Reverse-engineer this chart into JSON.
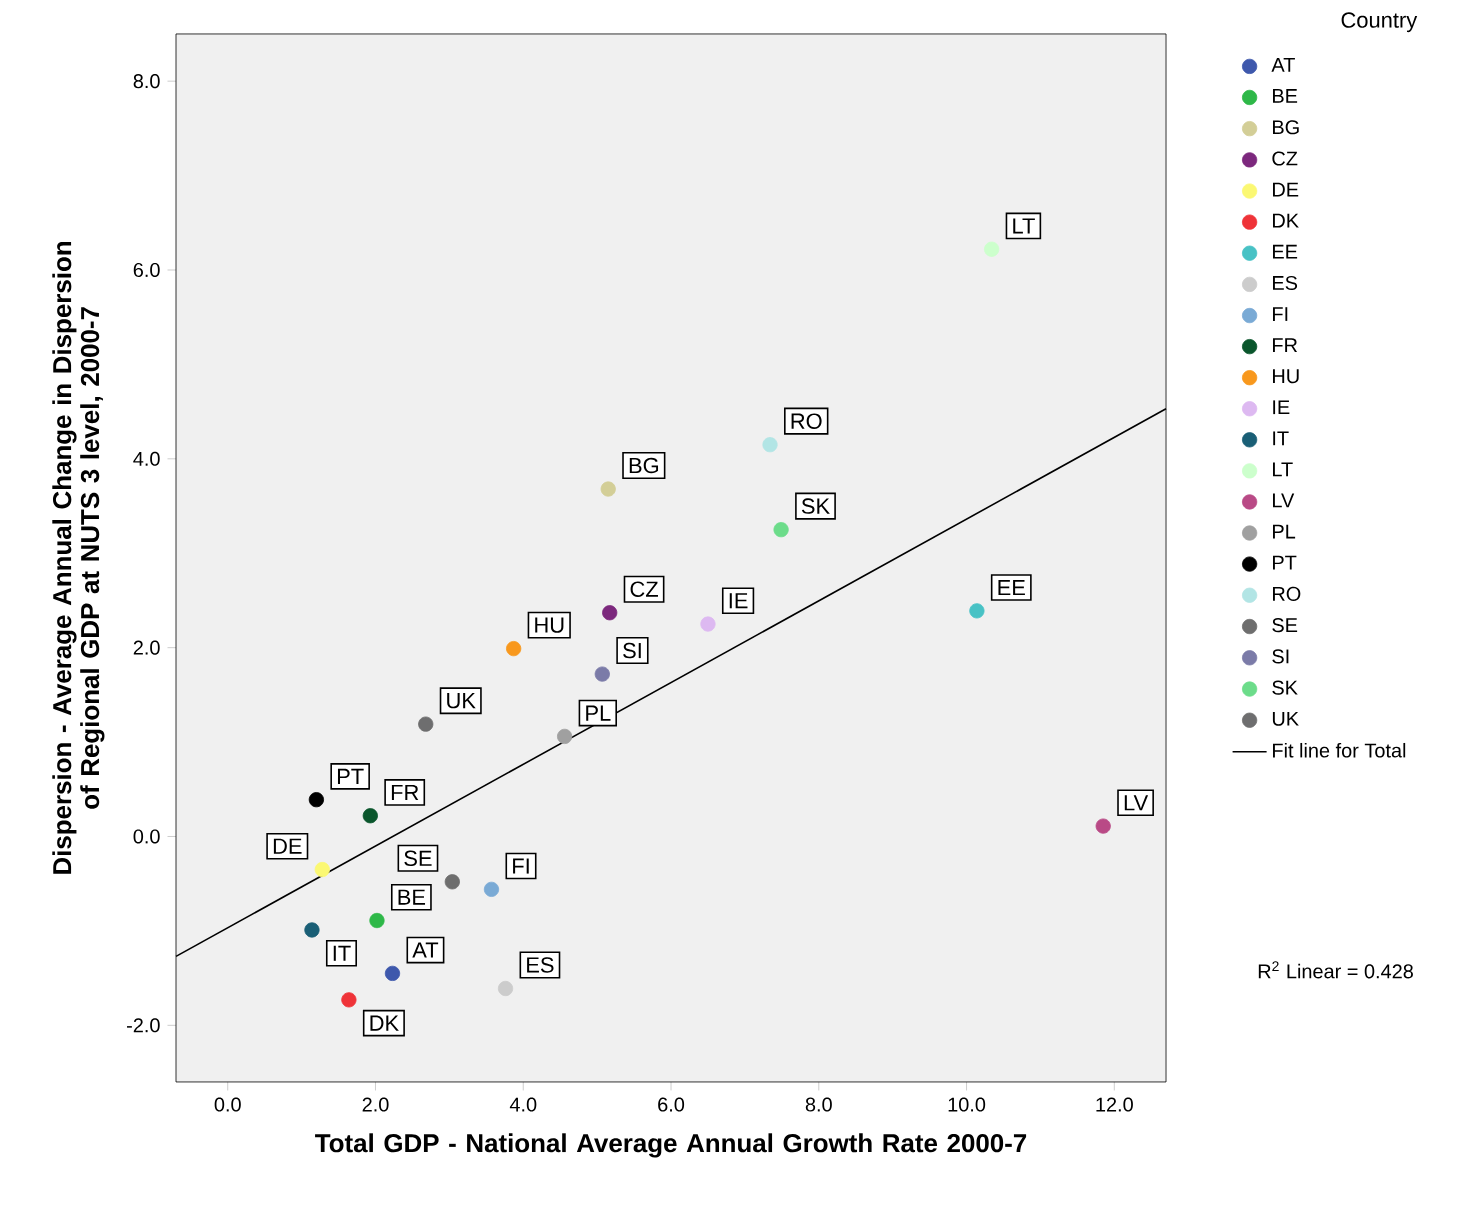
{
  "chart_data": {
    "type": "scatter",
    "xlabel": "Total GDP - National Average Annual Growth Rate 2000-7",
    "ylabel": "Dispersion - Average Annual Change in Dispersion of Regional GDP at NUTS 3 level, 2000-7",
    "legend_title": "Country",
    "legend": "right",
    "grid": false,
    "marker": "circle",
    "xlim": [
      -0.7,
      12.7
    ],
    "ylim": [
      -2.6,
      8.5
    ],
    "xticks": [
      {
        "value": 0,
        "label": "0.0"
      },
      {
        "value": 2,
        "label": "2.0"
      },
      {
        "value": 4,
        "label": "4.0"
      },
      {
        "value": 6,
        "label": "6.0"
      },
      {
        "value": 8,
        "label": "8.0"
      },
      {
        "value": 10,
        "label": "10.0"
      },
      {
        "value": 12,
        "label": "12.0"
      }
    ],
    "yticks": [
      {
        "value": -2,
        "label": "-2.0"
      },
      {
        "value": 0,
        "label": "0.0"
      },
      {
        "value": 2,
        "label": "2.0"
      },
      {
        "value": 4,
        "label": "4.0"
      },
      {
        "value": 6,
        "label": "6.0"
      },
      {
        "value": 8,
        "label": "8.0"
      }
    ],
    "series": [
      {
        "name": "AT",
        "color": "#3e58ac",
        "x": [
          2.23
        ],
        "values": [
          -1.45
        ]
      },
      {
        "name": "BE",
        "color": "#2eb848",
        "x": [
          2.02
        ],
        "values": [
          -0.89
        ]
      },
      {
        "name": "BG",
        "color": "#d3ce97",
        "x": [
          5.15
        ],
        "values": [
          3.68
        ]
      },
      {
        "name": "CZ",
        "color": "#7c287d",
        "x": [
          5.17
        ],
        "values": [
          2.37
        ]
      },
      {
        "name": "DE",
        "color": "#fbf873",
        "x": [
          1.28
        ],
        "values": [
          -0.35
        ]
      },
      {
        "name": "DK",
        "color": "#ef3338",
        "x": [
          1.64
        ],
        "values": [
          -1.73
        ]
      },
      {
        "name": "EE",
        "color": "#48c2c5",
        "x": [
          10.14
        ],
        "values": [
          2.39
        ]
      },
      {
        "name": "ES",
        "color": "#cccccc",
        "x": [
          3.76
        ],
        "values": [
          -1.61
        ]
      },
      {
        "name": "FI",
        "color": "#7aaad5",
        "x": [
          3.57
        ],
        "values": [
          -0.56
        ]
      },
      {
        "name": "FR",
        "color": "#0a562c",
        "x": [
          1.93
        ],
        "values": [
          0.22
        ]
      },
      {
        "name": "HU",
        "color": "#f8981d",
        "x": [
          3.87
        ],
        "values": [
          1.99
        ]
      },
      {
        "name": "IE",
        "color": "#ddb9f1",
        "x": [
          6.5
        ],
        "values": [
          2.25
        ]
      },
      {
        "name": "IT",
        "color": "#1a5f76",
        "x": [
          1.14
        ],
        "values": [
          -0.99
        ]
      },
      {
        "name": "LT",
        "color": "#ccffcc",
        "x": [
          10.34
        ],
        "values": [
          6.22
        ]
      },
      {
        "name": "LV",
        "color": "#b94a86",
        "x": [
          11.85
        ],
        "values": [
          0.11
        ]
      },
      {
        "name": "PL",
        "color": "#a0a0a0",
        "x": [
          4.56
        ],
        "values": [
          1.06
        ]
      },
      {
        "name": "PT",
        "color": "#000000",
        "x": [
          1.2
        ],
        "values": [
          0.39
        ]
      },
      {
        "name": "RO",
        "color": "#b2e5e5",
        "x": [
          7.34
        ],
        "values": [
          4.15
        ]
      },
      {
        "name": "SE",
        "color": "#6e6e6e",
        "x": [
          3.04
        ],
        "values": [
          -0.48
        ]
      },
      {
        "name": "SI",
        "color": "#7b7ba8",
        "x": [
          5.07
        ],
        "values": [
          1.72
        ]
      },
      {
        "name": "SK",
        "color": "#6cdc8a",
        "x": [
          7.49
        ],
        "values": [
          3.25
        ]
      },
      {
        "name": "UK",
        "color": "#6e6e6f",
        "x": [
          2.68
        ],
        "values": [
          1.19
        ]
      },
      {
        "name": "Fit line for Total",
        "type": "line",
        "marker": "none",
        "color": "#000000",
        "x": [
          -0.7,
          12.7
        ],
        "values": [
          -1.27,
          4.53
        ]
      }
    ],
    "annotations": [
      "R$^{2}$ Linear = 0.428"
    ]
  }
}
